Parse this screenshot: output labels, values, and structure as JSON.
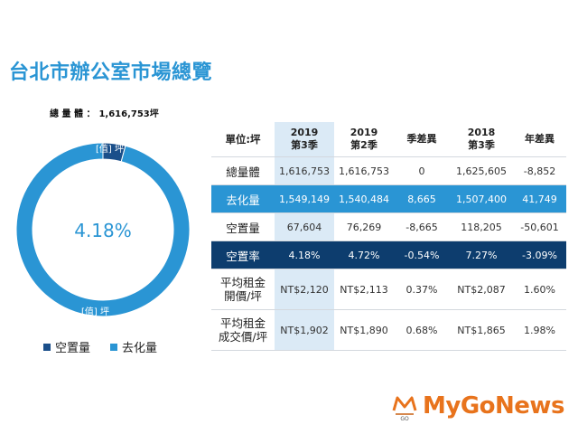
{
  "title": "台北市辦公室市場總覽",
  "total": {
    "label": "總 量 體 ：",
    "value": "1,616,753坪"
  },
  "donut": {
    "center_label": "4.18%",
    "slice_label_top": "[值] 坪",
    "slice_label_bottom": "[值] 坪"
  },
  "legend": [
    {
      "name": "空置量",
      "color": "#1b4f8a"
    },
    {
      "name": "去化量",
      "color": "#2a95d4"
    }
  ],
  "table": {
    "headers": [
      {
        "top": "單位:坪",
        "bottom": ""
      },
      {
        "top": "2019",
        "bottom": "第3季"
      },
      {
        "top": "2019",
        "bottom": "第2季"
      },
      {
        "top": "季差異",
        "bottom": ""
      },
      {
        "top": "2018",
        "bottom": "第3季"
      },
      {
        "top": "年差異",
        "bottom": ""
      }
    ],
    "rows": [
      {
        "label": "總量體",
        "cells": [
          "1,616,753",
          "1,616,753",
          "0",
          "1,625,605",
          "-8,852"
        ]
      },
      {
        "label": "去化量",
        "cells": [
          "1,549,149",
          "1,540,484",
          "8,665",
          "1,507,400",
          "41,749"
        ]
      },
      {
        "label": "空置量",
        "cells": [
          "67,604",
          "76,269",
          "-8,665",
          "118,205",
          "-50,601"
        ]
      },
      {
        "label": "空置率",
        "cells": [
          "4.18%",
          "4.72%",
          "-0.54%",
          "7.27%",
          "-3.09%"
        ]
      },
      {
        "label": "平均租金\n開價/坪",
        "cells": [
          "NT$2,120",
          "NT$2,113",
          "0.37%",
          "NT$2,087",
          "1.60%"
        ]
      },
      {
        "label": "平均租金\n成交價/坪",
        "cells": [
          "NT$1,902",
          "NT$1,890",
          "0.68%",
          "NT$1,865",
          "1.98%"
        ]
      }
    ]
  },
  "logo": {
    "text": "MyGoNews",
    "mark": "GO",
    "color": "#e8731c"
  },
  "chart_data": {
    "type": "pie",
    "title": "",
    "categories": [
      "空置量",
      "去化量"
    ],
    "values": [
      67604,
      1549149
    ],
    "colors": [
      "#1b4f8a",
      "#2a95d4"
    ],
    "center_label": "4.18%",
    "legend_position": "bottom"
  }
}
